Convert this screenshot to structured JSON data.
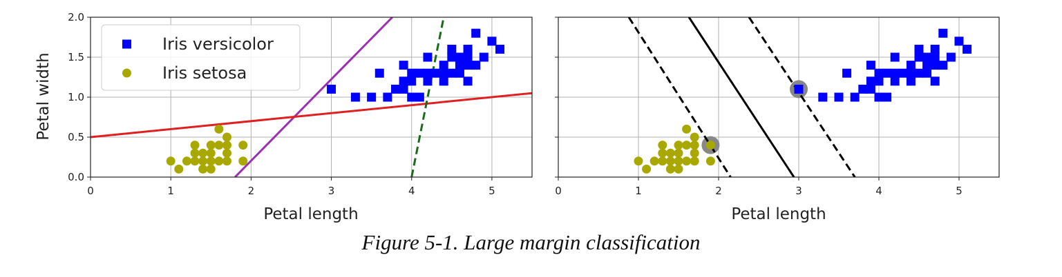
{
  "caption": "Figure 5-1. Large margin classification",
  "chart_data": [
    {
      "type": "scatter",
      "title": "",
      "xlabel": "Petal length",
      "ylabel": "Petal width",
      "xlim": [
        0,
        5.5
      ],
      "ylim": [
        0,
        2
      ],
      "xticks": [
        0,
        1,
        2,
        3,
        4,
        5
      ],
      "yticks": [
        0.0,
        0.5,
        1.0,
        1.5,
        2.0
      ],
      "xtick_labels": [
        "0",
        "1",
        "2",
        "3",
        "4",
        "5"
      ],
      "ytick_labels": [
        "0.0",
        "0.5",
        "1.0",
        "1.5",
        "2.0"
      ],
      "grid": true,
      "legend": "top-left",
      "series": [
        {
          "name": "Iris versicolor",
          "marker": "square",
          "color": "#0000ff",
          "points": [
            [
              3.0,
              1.1
            ],
            [
              3.3,
              1.0
            ],
            [
              3.5,
              1.0
            ],
            [
              3.6,
              1.3
            ],
            [
              3.7,
              1.0
            ],
            [
              3.8,
              1.1
            ],
            [
              3.9,
              1.1
            ],
            [
              3.9,
              1.2
            ],
            [
              3.9,
              1.4
            ],
            [
              4.0,
              1.0
            ],
            [
              4.0,
              1.2
            ],
            [
              4.0,
              1.3
            ],
            [
              4.1,
              1.0
            ],
            [
              4.1,
              1.3
            ],
            [
              4.2,
              1.2
            ],
            [
              4.2,
              1.3
            ],
            [
              4.2,
              1.5
            ],
            [
              4.3,
              1.3
            ],
            [
              4.4,
              1.2
            ],
            [
              4.4,
              1.3
            ],
            [
              4.4,
              1.4
            ],
            [
              4.5,
              1.3
            ],
            [
              4.5,
              1.5
            ],
            [
              4.5,
              1.6
            ],
            [
              4.6,
              1.3
            ],
            [
              4.6,
              1.4
            ],
            [
              4.6,
              1.5
            ],
            [
              4.7,
              1.2
            ],
            [
              4.7,
              1.4
            ],
            [
              4.7,
              1.5
            ],
            [
              4.7,
              1.6
            ],
            [
              4.8,
              1.4
            ],
            [
              4.8,
              1.8
            ],
            [
              4.9,
              1.5
            ],
            [
              5.0,
              1.7
            ],
            [
              5.1,
              1.6
            ]
          ]
        },
        {
          "name": "Iris setosa",
          "marker": "circle",
          "color": "#a8a800",
          "points": [
            [
              1.0,
              0.2
            ],
            [
              1.1,
              0.1
            ],
            [
              1.2,
              0.2
            ],
            [
              1.3,
              0.2
            ],
            [
              1.3,
              0.3
            ],
            [
              1.3,
              0.4
            ],
            [
              1.4,
              0.1
            ],
            [
              1.4,
              0.2
            ],
            [
              1.4,
              0.3
            ],
            [
              1.5,
              0.1
            ],
            [
              1.5,
              0.2
            ],
            [
              1.5,
              0.3
            ],
            [
              1.5,
              0.4
            ],
            [
              1.6,
              0.2
            ],
            [
              1.6,
              0.4
            ],
            [
              1.6,
              0.6
            ],
            [
              1.7,
              0.2
            ],
            [
              1.7,
              0.3
            ],
            [
              1.7,
              0.4
            ],
            [
              1.7,
              0.5
            ],
            [
              1.9,
              0.2
            ],
            [
              1.9,
              0.4
            ]
          ]
        }
      ],
      "lines": [
        {
          "color": "#9b30b0",
          "style": "solid",
          "points": [
            [
              1.8,
              0.0
            ],
            [
              3.76,
              2.0
            ]
          ]
        },
        {
          "color": "#e02020",
          "style": "solid",
          "points": [
            [
              0.0,
              0.5
            ],
            [
              5.5,
              1.05
            ]
          ]
        },
        {
          "color": "#1a6b1a",
          "style": "dashed",
          "points": [
            [
              4.0,
              0.0
            ],
            [
              4.4,
              2.0
            ]
          ]
        }
      ]
    },
    {
      "type": "scatter",
      "title": "",
      "xlabel": "Petal length",
      "ylabel": "",
      "xlim": [
        0,
        5.5
      ],
      "ylim": [
        0,
        2
      ],
      "xticks": [
        0,
        1,
        2,
        3,
        4,
        5
      ],
      "yticks": [
        0.0,
        0.5,
        1.0,
        1.5,
        2.0
      ],
      "xtick_labels": [
        "0",
        "1",
        "2",
        "3",
        "4",
        "5"
      ],
      "ytick_labels": [],
      "grid": true,
      "series": [
        {
          "marker": "square",
          "color": "#0000ff",
          "points": [
            [
              3.0,
              1.1
            ],
            [
              3.3,
              1.0
            ],
            [
              3.5,
              1.0
            ],
            [
              3.6,
              1.3
            ],
            [
              3.7,
              1.0
            ],
            [
              3.8,
              1.1
            ],
            [
              3.9,
              1.1
            ],
            [
              3.9,
              1.2
            ],
            [
              3.9,
              1.4
            ],
            [
              4.0,
              1.0
            ],
            [
              4.0,
              1.2
            ],
            [
              4.0,
              1.3
            ],
            [
              4.1,
              1.0
            ],
            [
              4.1,
              1.3
            ],
            [
              4.2,
              1.2
            ],
            [
              4.2,
              1.3
            ],
            [
              4.2,
              1.5
            ],
            [
              4.3,
              1.3
            ],
            [
              4.4,
              1.2
            ],
            [
              4.4,
              1.3
            ],
            [
              4.4,
              1.4
            ],
            [
              4.5,
              1.3
            ],
            [
              4.5,
              1.5
            ],
            [
              4.5,
              1.6
            ],
            [
              4.6,
              1.3
            ],
            [
              4.6,
              1.4
            ],
            [
              4.6,
              1.5
            ],
            [
              4.7,
              1.2
            ],
            [
              4.7,
              1.4
            ],
            [
              4.7,
              1.5
            ],
            [
              4.7,
              1.6
            ],
            [
              4.8,
              1.4
            ],
            [
              4.8,
              1.8
            ],
            [
              4.9,
              1.5
            ],
            [
              5.0,
              1.7
            ],
            [
              5.1,
              1.6
            ]
          ]
        },
        {
          "marker": "circle",
          "color": "#a8a800",
          "points": [
            [
              1.0,
              0.2
            ],
            [
              1.1,
              0.1
            ],
            [
              1.2,
              0.2
            ],
            [
              1.3,
              0.2
            ],
            [
              1.3,
              0.3
            ],
            [
              1.3,
              0.4
            ],
            [
              1.4,
              0.1
            ],
            [
              1.4,
              0.2
            ],
            [
              1.4,
              0.3
            ],
            [
              1.5,
              0.1
            ],
            [
              1.5,
              0.2
            ],
            [
              1.5,
              0.3
            ],
            [
              1.5,
              0.4
            ],
            [
              1.6,
              0.2
            ],
            [
              1.6,
              0.4
            ],
            [
              1.6,
              0.6
            ],
            [
              1.7,
              0.2
            ],
            [
              1.7,
              0.3
            ],
            [
              1.7,
              0.4
            ],
            [
              1.7,
              0.5
            ],
            [
              1.9,
              0.2
            ],
            [
              1.9,
              0.4
            ]
          ]
        }
      ],
      "support_vectors": {
        "color": "#888888",
        "points": [
          [
            1.9,
            0.4
          ],
          [
            3.0,
            1.1
          ]
        ]
      },
      "lines": [
        {
          "color": "#000000",
          "style": "solid",
          "points": [
            [
              1.63,
              2.0
            ],
            [
              2.94,
              0.0
            ]
          ]
        },
        {
          "color": "#000000",
          "style": "dashed",
          "points": [
            [
              0.88,
              2.0
            ],
            [
              2.15,
              0.0
            ]
          ]
        },
        {
          "color": "#000000",
          "style": "dashed",
          "points": [
            [
              2.38,
              2.0
            ],
            [
              3.7,
              0.0
            ]
          ]
        }
      ]
    }
  ]
}
